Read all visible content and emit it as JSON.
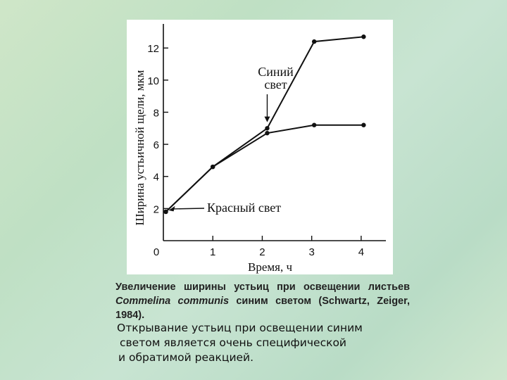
{
  "chart_data": {
    "type": "line",
    "xlabel": "Время, ч",
    "ylabel": "Ширина устьичной щели, мкм",
    "xlim": [
      0,
      4.5
    ],
    "ylim": [
      0,
      13.5
    ],
    "xticks": [
      0,
      1,
      2,
      3,
      4
    ],
    "yticks": [
      2,
      4,
      6,
      8,
      10,
      12
    ],
    "grid": false,
    "series": [
      {
        "name": "Красный свет",
        "x": [
          0.05,
          1.0,
          2.1,
          3.05,
          4.05
        ],
        "y": [
          1.8,
          4.6,
          6.7,
          7.2,
          7.2
        ]
      },
      {
        "name": "Синий свет",
        "x": [
          0.05,
          1.0,
          2.1,
          3.05,
          4.05
        ],
        "y": [
          1.8,
          4.6,
          7.0,
          12.4,
          12.7
        ]
      }
    ],
    "annotations": [
      {
        "text_lines": [
          "Синий",
          "свет"
        ],
        "arrow_to": [
          2.1,
          7.25
        ]
      },
      {
        "text": "Красный свет",
        "arrow_to": [
          0.05,
          1.8
        ]
      }
    ]
  },
  "caption": {
    "part1": "Увеличение ширины устьиц при освещении листьев ",
    "species": "Commelina communis",
    "part2": " синим светом (Schwartz, Zeiger, 1984)."
  },
  "note": {
    "lines": [
      "Открывание устьиц при освещении синим",
      "светом является очень специфической",
      "и обратимой реакцией."
    ]
  }
}
